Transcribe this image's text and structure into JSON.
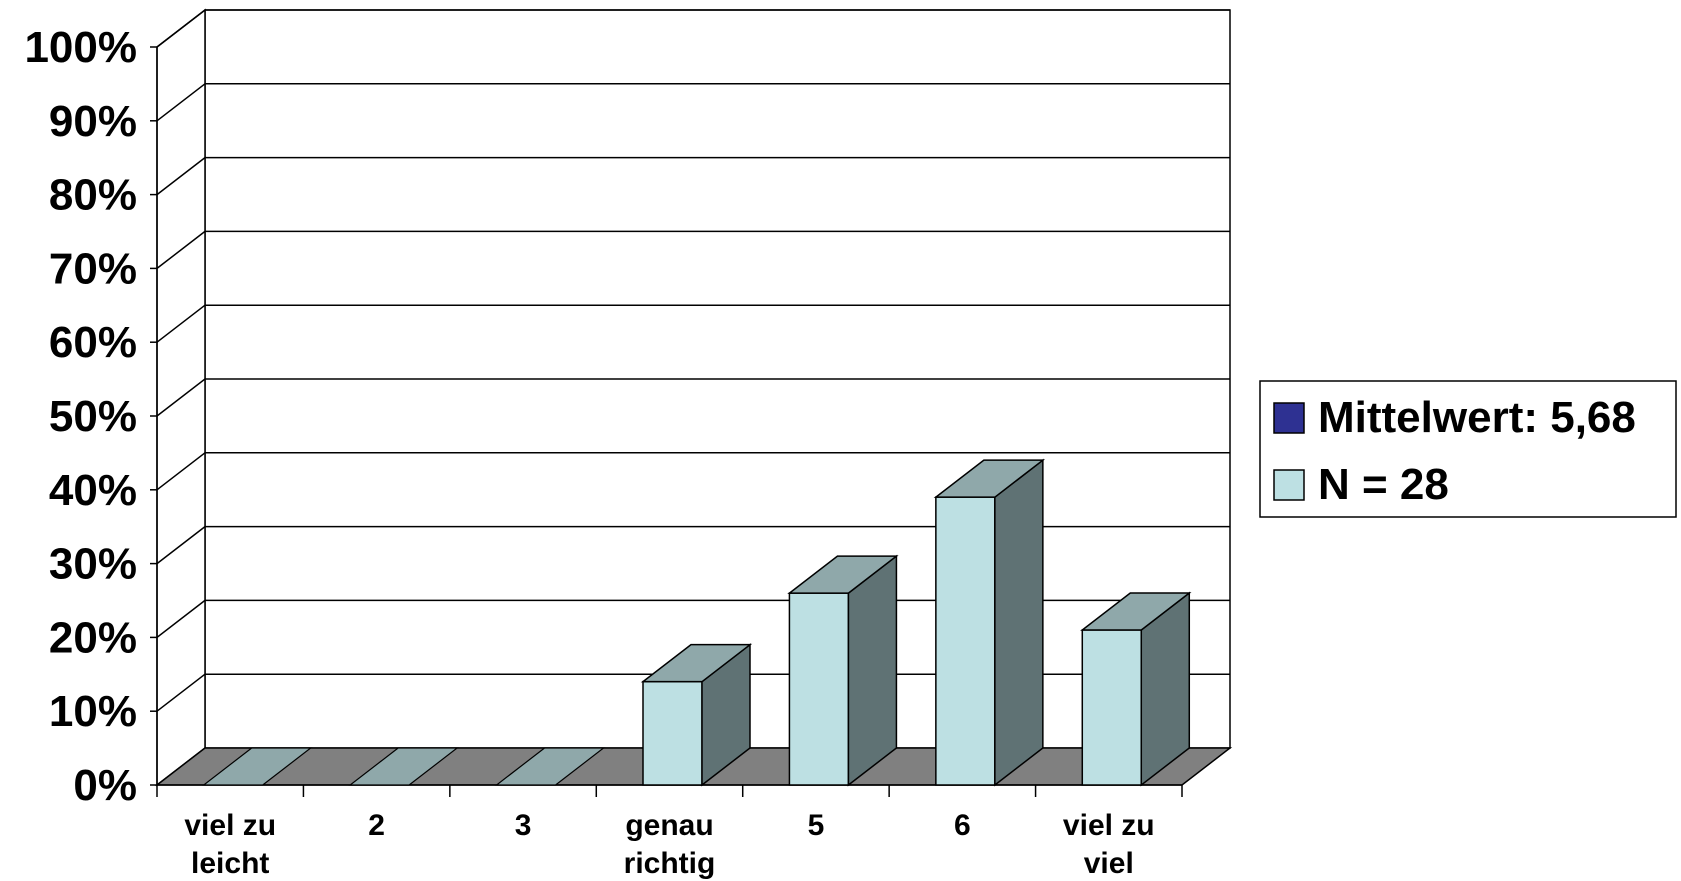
{
  "chart_data": {
    "type": "bar",
    "style": "3d",
    "categories": [
      [
        "viel zu",
        "leicht"
      ],
      [
        "2"
      ],
      [
        "3"
      ],
      [
        "genau",
        "richtig"
      ],
      [
        "5"
      ],
      [
        "6"
      ],
      [
        "viel zu",
        "viel"
      ]
    ],
    "series": [
      {
        "values": [
          0,
          0,
          0,
          14,
          26,
          39,
          21
        ]
      }
    ],
    "yaxis": {
      "min": 0,
      "max": 100,
      "step": 10,
      "tick_labels": [
        "0%",
        "10%",
        "20%",
        "30%",
        "40%",
        "50%",
        "60%",
        "70%",
        "80%",
        "90%",
        "100%"
      ]
    },
    "grid": true,
    "legend": {
      "placement": "right",
      "entries": [
        {
          "label": "Mittelwert: 5,68",
          "color": "#2e3192"
        },
        {
          "label": "N = 28",
          "color": "#bde0e3"
        }
      ]
    },
    "colors": {
      "bar_front": "#bde0e3",
      "bar_top": "#8fa8aa",
      "bar_side": "#5f7274",
      "floor": "#808080",
      "empty_bar": "#8fa8aa"
    }
  }
}
